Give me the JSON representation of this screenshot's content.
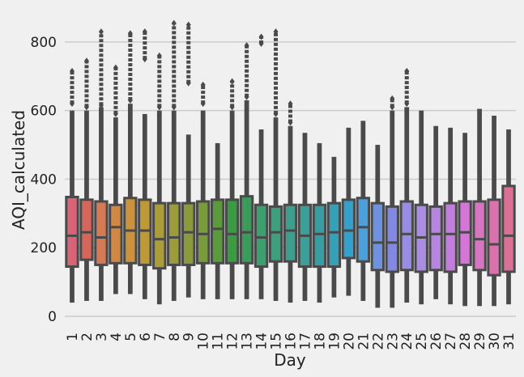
{
  "chart_data": {
    "type": "boxen",
    "xlabel": "Day",
    "ylabel": "AQI_calculated",
    "categories": [
      "1",
      "2",
      "3",
      "4",
      "5",
      "6",
      "7",
      "8",
      "9",
      "10",
      "11",
      "12",
      "13",
      "14",
      "15",
      "16",
      "17",
      "18",
      "19",
      "20",
      "21",
      "22",
      "23",
      "24",
      "25",
      "26",
      "27",
      "28",
      "29",
      "30",
      "31"
    ],
    "low": [
      40,
      45,
      45,
      65,
      65,
      50,
      35,
      45,
      55,
      50,
      50,
      50,
      50,
      50,
      45,
      40,
      45,
      40,
      55,
      60,
      45,
      25,
      25,
      40,
      35,
      50,
      35,
      30,
      30,
      30,
      35
    ],
    "q1": [
      145,
      165,
      150,
      155,
      155,
      150,
      140,
      150,
      150,
      155,
      155,
      155,
      155,
      145,
      160,
      160,
      145,
      145,
      145,
      170,
      160,
      135,
      130,
      135,
      130,
      135,
      130,
      150,
      135,
      120,
      130
    ],
    "median": [
      235,
      245,
      230,
      260,
      250,
      250,
      225,
      230,
      245,
      240,
      255,
      240,
      245,
      230,
      245,
      250,
      235,
      240,
      245,
      250,
      260,
      215,
      215,
      240,
      230,
      240,
      240,
      245,
      225,
      210,
      235
    ],
    "q3": [
      348,
      340,
      335,
      325,
      345,
      340,
      330,
      330,
      330,
      335,
      340,
      340,
      350,
      325,
      320,
      325,
      325,
      325,
      330,
      340,
      345,
      330,
      320,
      335,
      325,
      320,
      330,
      335,
      335,
      340,
      380
    ],
    "high": [
      600,
      600,
      610,
      580,
      620,
      590,
      600,
      600,
      530,
      600,
      505,
      600,
      630,
      545,
      580,
      555,
      535,
      505,
      465,
      550,
      570,
      500,
      600,
      610,
      600,
      555,
      550,
      535,
      605,
      585,
      545
    ],
    "outlier_min": [
      620,
      610,
      615,
      590,
      630,
      750,
      610,
      610,
      680,
      620,
      null,
      610,
      640,
      795,
      590,
      565,
      null,
      null,
      null,
      null,
      null,
      null,
      610,
      620,
      null,
      null,
      null,
      null,
      null,
      null,
      null
    ],
    "outlier_max": [
      715,
      745,
      830,
      725,
      825,
      830,
      760,
      855,
      850,
      675,
      null,
      685,
      790,
      815,
      830,
      620,
      null,
      null,
      null,
      null,
      null,
      null,
      635,
      715,
      null,
      null,
      null,
      null,
      null,
      null,
      null
    ],
    "colors": [
      "hsl(350,60%,62%)",
      "hsl(5,60%,60%)",
      "hsl(18,60%,58%)",
      "hsl(28,60%,55%)",
      "hsl(36,58%,52%)",
      "hsl(44,55%,48%)",
      "hsl(52,50%,45%)",
      "hsl(60,45%,42%)",
      "hsl(70,45%,42%)",
      "hsl(82,45%,42%)",
      "hsl(100,45%,42%)",
      "hsl(125,45%,42%)",
      "hsl(140,45%,42%)",
      "hsl(150,45%,43%)",
      "hsl(160,45%,43%)",
      "hsl(168,45%,43%)",
      "hsl(176,45%,43%)",
      "hsl(183,50%,43%)",
      "hsl(190,55%,46%)",
      "hsl(197,60%,50%)",
      "hsl(205,65%,58%)",
      "hsl(220,65%,65%)",
      "hsl(235,65%,70%)",
      "hsl(248,60%,72%)",
      "hsl(260,60%,72%)",
      "hsl(272,60%,70%)",
      "hsl(284,58%,68%)",
      "hsl(298,55%,65%)",
      "hsl(312,55%,65%)",
      "hsl(325,58%,65%)",
      "hsl(338,60%,65%)"
    ],
    "ylim": [
      -33,
      887
    ],
    "yticks": [
      0,
      200,
      400,
      600,
      800
    ],
    "grid": true
  }
}
